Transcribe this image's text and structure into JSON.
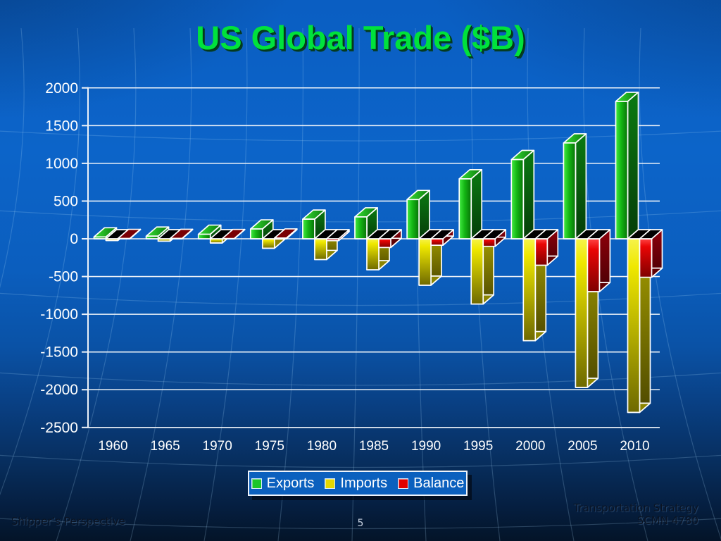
{
  "slide": {
    "title": "US Global Trade ($B)",
    "page_number": "5",
    "footer_left": "Shipper’s Perspective",
    "footer_right_line1": "Transportation Strategy",
    "footer_right_line2": "SCMN 4780"
  },
  "legend": {
    "items": [
      {
        "label": "Exports",
        "color": "#1BC62B"
      },
      {
        "label": "Imports",
        "color": "#E5D800"
      },
      {
        "label": "Balance",
        "color": "#E00000"
      }
    ]
  },
  "chart_data": {
    "type": "bar",
    "title": "US Global Trade ($B)",
    "categories": [
      "1960",
      "1965",
      "1970",
      "1975",
      "1980",
      "1985",
      "1990",
      "1995",
      "2000",
      "2005",
      "2010"
    ],
    "series": [
      {
        "name": "Exports",
        "color": "#1BC62B",
        "values": [
          25,
          35,
          60,
          130,
          260,
          290,
          520,
          795,
          1050,
          1270,
          1820
        ]
      },
      {
        "name": "Imports",
        "color": "#E5D800",
        "values": [
          -22,
          -31,
          -55,
          -125,
          -275,
          -410,
          -615,
          -865,
          -1350,
          -1970,
          -2300
        ]
      },
      {
        "name": "Balance",
        "color": "#E00000",
        "values": [
          4,
          5,
          3,
          10,
          -25,
          -115,
          -85,
          -100,
          -350,
          -700,
          -510
        ]
      }
    ],
    "xlabel": "",
    "ylabel": "",
    "ylim": [
      -2500,
      2000
    ],
    "yticks": [
      2000,
      1500,
      1000,
      500,
      0,
      -500,
      -1000,
      -1500,
      -2000,
      -2500
    ],
    "grid": "horizontal",
    "legend_position": "bottom"
  },
  "colors": {
    "background_top": "#0c64c9",
    "background_bottom": "#041428",
    "title_green": "#00E23C",
    "gridline": "#EDF2F8",
    "negative_bar_top": "#000000"
  }
}
